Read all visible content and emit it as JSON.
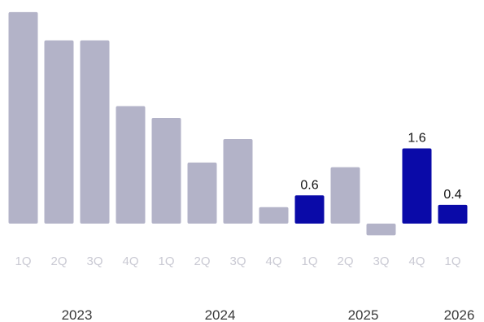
{
  "colors": {
    "default": "#b3b3c8",
    "highlight": "#0a0aa8"
  },
  "chart_data": {
    "type": "bar",
    "categories": [
      "1Q",
      "2Q",
      "3Q",
      "4Q",
      "1Q",
      "2Q",
      "3Q",
      "4Q",
      "1Q",
      "2Q",
      "3Q",
      "4Q",
      "1Q"
    ],
    "years": [
      {
        "label": "2023",
        "from": 0,
        "to": 3
      },
      {
        "label": "2024",
        "from": 4,
        "to": 7
      },
      {
        "label": "2025",
        "from": 8,
        "to": 11
      },
      {
        "label": "2026",
        "from": 12,
        "to": 12
      }
    ],
    "values": [
      4.5,
      3.9,
      3.9,
      2.5,
      2.25,
      1.3,
      1.8,
      0.35,
      0.6,
      1.2,
      -0.25,
      1.6,
      0.4
    ],
    "highlighted": [
      8,
      11,
      12
    ],
    "data_labels": [
      "",
      "",
      "",
      "",
      "",
      "",
      "",
      "",
      "0.6",
      "",
      "",
      "1.6",
      "0.4"
    ],
    "ylim": [
      -0.3,
      4.8
    ],
    "grid": false,
    "legend": "none",
    "title": "",
    "xlabel": "",
    "ylabel": ""
  }
}
